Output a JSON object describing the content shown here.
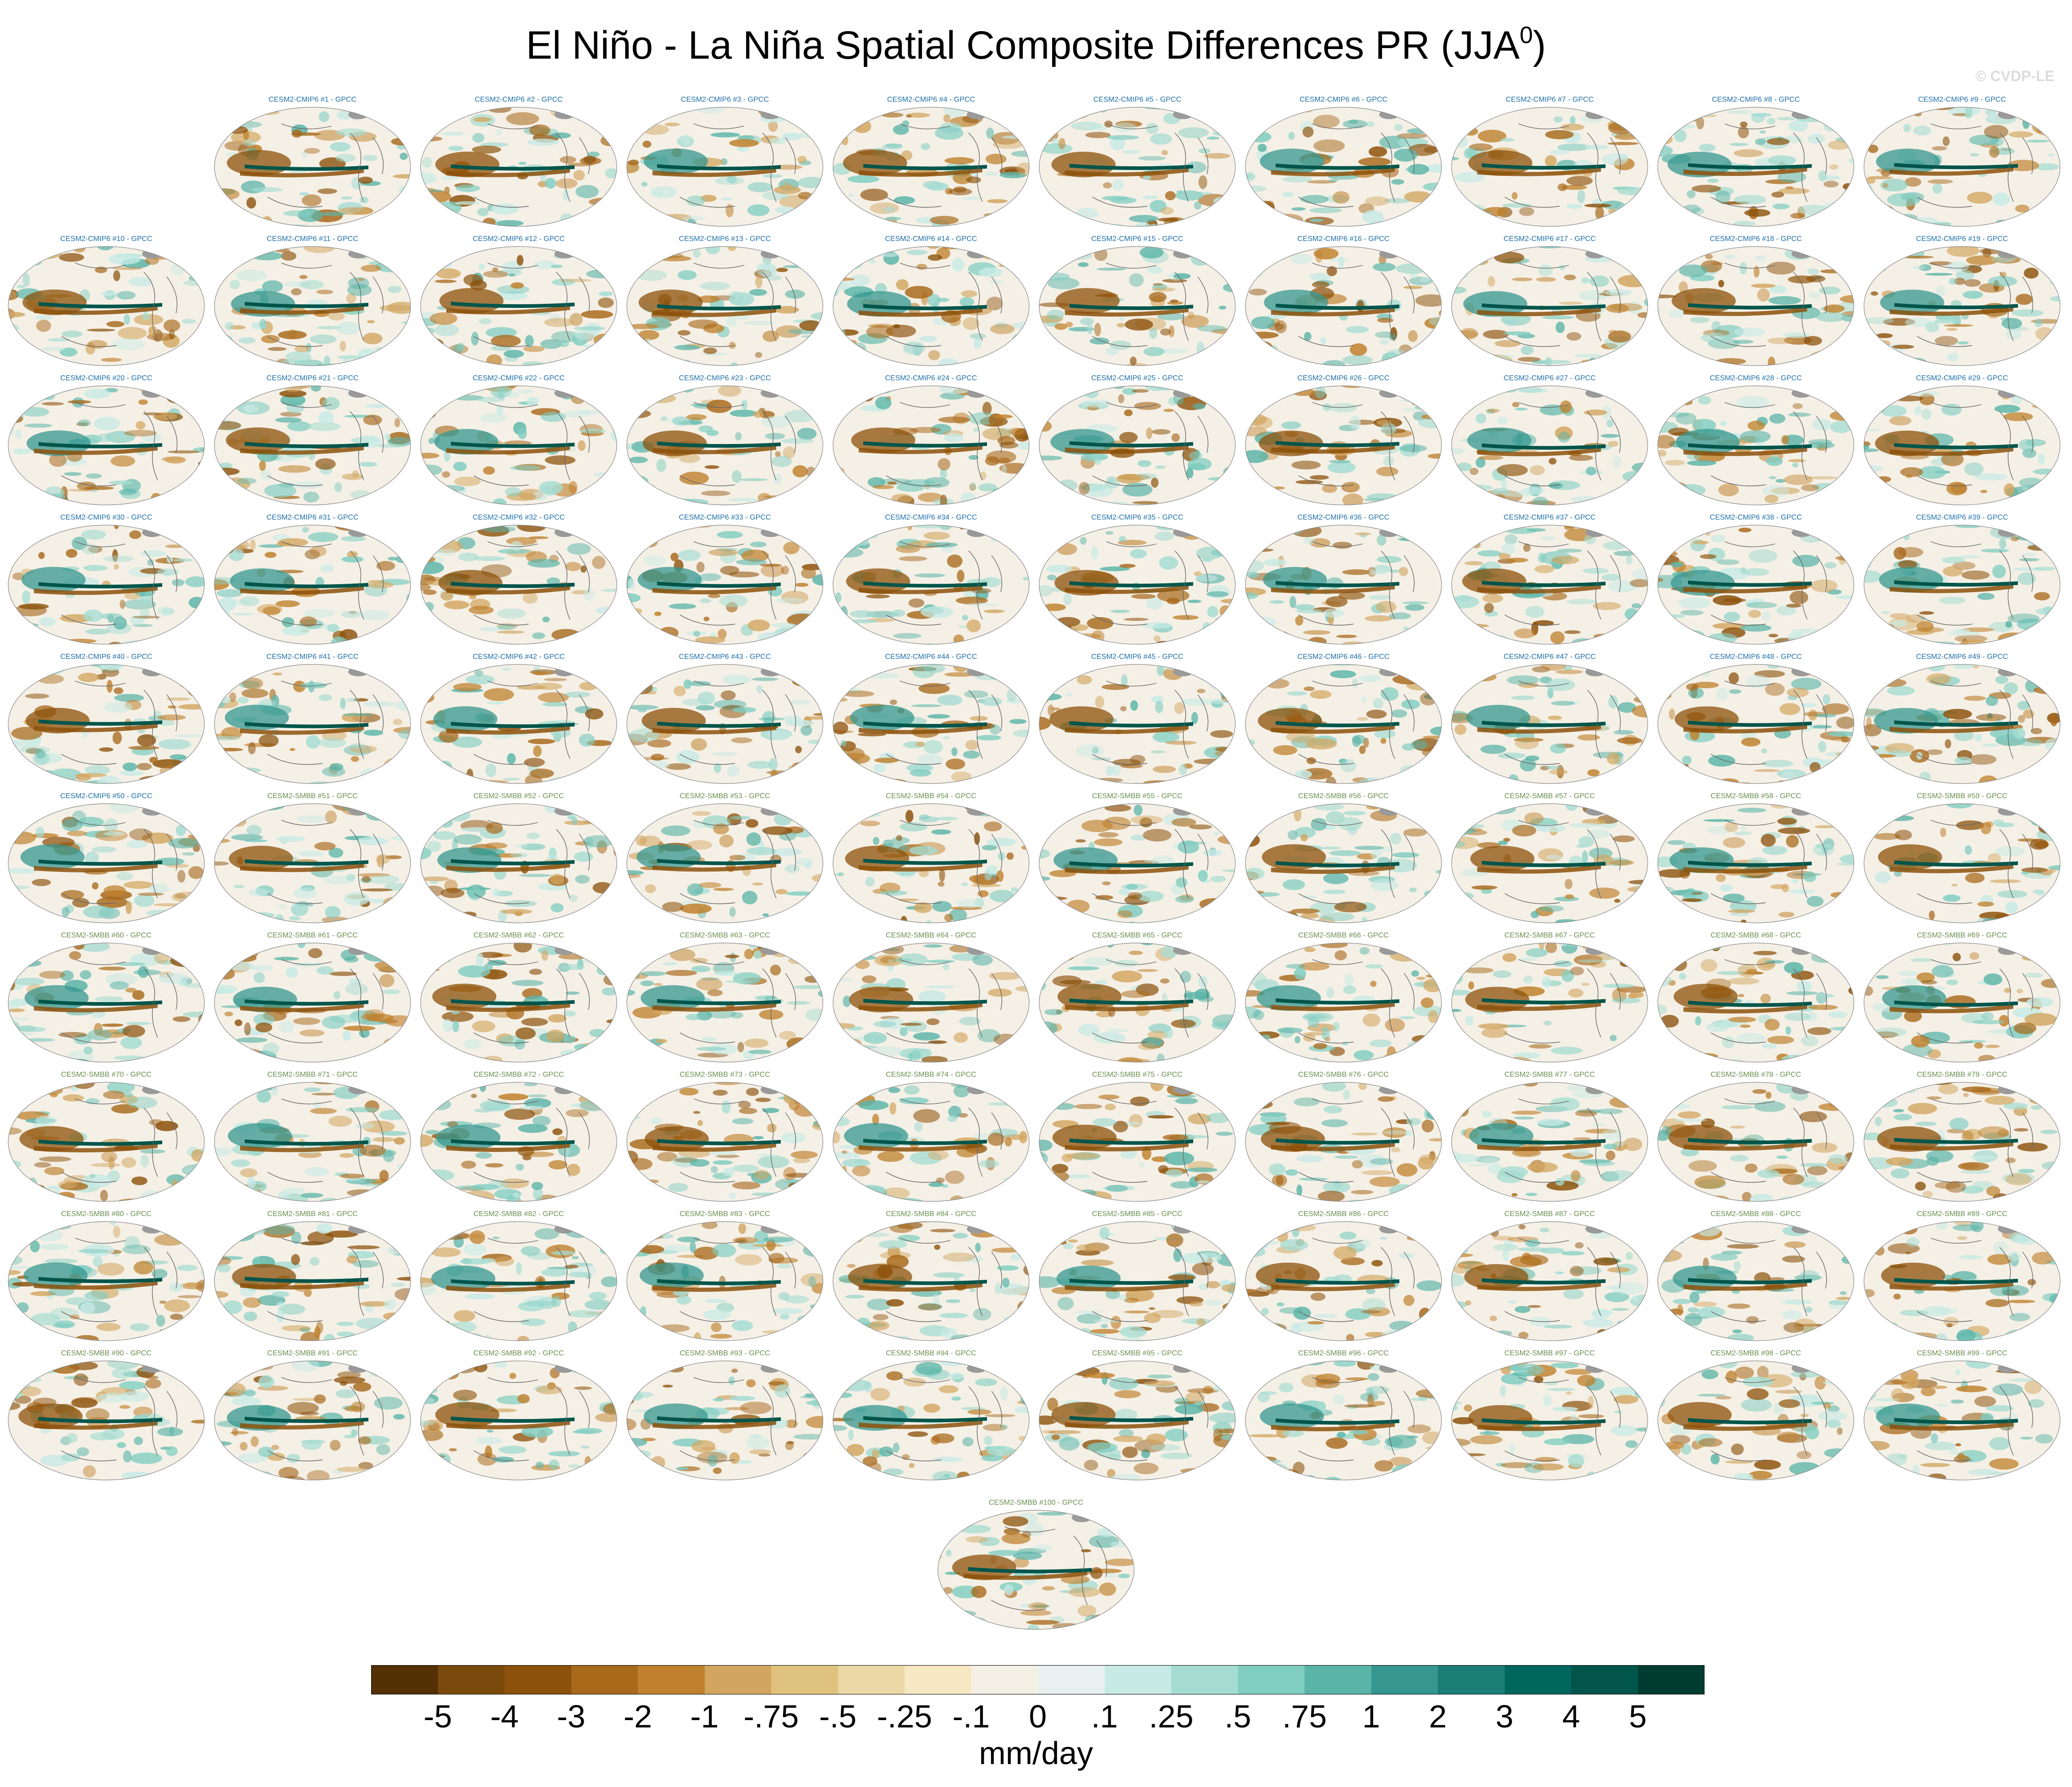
{
  "title": {
    "main": "El Niño - La Niña Spatial Composite Differences PR (JJA",
    "sup": "0",
    "close": ")"
  },
  "credit": "© CVDP-LE",
  "colors": {
    "cmip6_title": "#1f6fa8",
    "smbb_title": "#6a8f4e",
    "map_border": "#888888",
    "coast": "#666666",
    "land_ice": "#9a9a9a"
  },
  "chart_data": {
    "type": "heatmap",
    "description_units": "mm/day",
    "panels": [
      "CESM2-CMIP6 #1 - GPCC",
      "CESM2-CMIP6 #2 - GPCC",
      "CESM2-CMIP6 #3 - GPCC",
      "CESM2-CMIP6 #4 - GPCC",
      "CESM2-CMIP6 #5 - GPCC",
      "CESM2-CMIP6 #6 - GPCC",
      "CESM2-CMIP6 #7 - GPCC",
      "CESM2-CMIP6 #8 - GPCC",
      "CESM2-CMIP6 #9 - GPCC",
      "CESM2-CMIP6 #10 - GPCC",
      "CESM2-CMIP6 #11 - GPCC",
      "CESM2-CMIP6 #12 - GPCC",
      "CESM2-CMIP6 #13 - GPCC",
      "CESM2-CMIP6 #14 - GPCC",
      "CESM2-CMIP6 #15 - GPCC",
      "CESM2-CMIP6 #16 - GPCC",
      "CESM2-CMIP6 #17 - GPCC",
      "CESM2-CMIP6 #18 - GPCC",
      "CESM2-CMIP6 #19 - GPCC",
      "CESM2-CMIP6 #20 - GPCC",
      "CESM2-CMIP6 #21 - GPCC",
      "CESM2-CMIP6 #22 - GPCC",
      "CESM2-CMIP6 #23 - GPCC",
      "CESM2-CMIP6 #24 - GPCC",
      "CESM2-CMIP6 #25 - GPCC",
      "CESM2-CMIP6 #26 - GPCC",
      "CESM2-CMIP6 #27 - GPCC",
      "CESM2-CMIP6 #28 - GPCC",
      "CESM2-CMIP6 #29 - GPCC",
      "CESM2-CMIP6 #30 - GPCC",
      "CESM2-CMIP6 #31 - GPCC",
      "CESM2-CMIP6 #32 - GPCC",
      "CESM2-CMIP6 #33 - GPCC",
      "CESM2-CMIP6 #34 - GPCC",
      "CESM2-CMIP6 #35 - GPCC",
      "CESM2-CMIP6 #36 - GPCC",
      "CESM2-CMIP6 #37 - GPCC",
      "CESM2-CMIP6 #38 - GPCC",
      "CESM2-CMIP6 #39 - GPCC",
      "CESM2-CMIP6 #40 - GPCC",
      "CESM2-CMIP6 #41 - GPCC",
      "CESM2-CMIP6 #42 - GPCC",
      "CESM2-CMIP6 #43 - GPCC",
      "CESM2-CMIP6 #44 - GPCC",
      "CESM2-CMIP6 #45 - GPCC",
      "CESM2-CMIP6 #46 - GPCC",
      "CESM2-CMIP6 #47 - GPCC",
      "CESM2-CMIP6 #48 - GPCC",
      "CESM2-CMIP6 #49 - GPCC",
      "CESM2-CMIP6 #50 - GPCC",
      "CESM2-SMBB #51 - GPCC",
      "CESM2-SMBB #52 - GPCC",
      "CESM2-SMBB #53 - GPCC",
      "CESM2-SMBB #54 - GPCC",
      "CESM2-SMBB #55 - GPCC",
      "CESM2-SMBB #56 - GPCC",
      "CESM2-SMBB #57 - GPCC",
      "CESM2-SMBB #58 - GPCC",
      "CESM2-SMBB #59 - GPCC",
      "CESM2-SMBB #60 - GPCC",
      "CESM2-SMBB #61 - GPCC",
      "CESM2-SMBB #62 - GPCC",
      "CESM2-SMBB #63 - GPCC",
      "CESM2-SMBB #64 - GPCC",
      "CESM2-SMBB #65 - GPCC",
      "CESM2-SMBB #66 - GPCC",
      "CESM2-SMBB #67 - GPCC",
      "CESM2-SMBB #68 - GPCC",
      "CESM2-SMBB #69 - GPCC",
      "CESM2-SMBB #70 - GPCC",
      "CESM2-SMBB #71 - GPCC",
      "CESM2-SMBB #72 - GPCC",
      "CESM2-SMBB #73 - GPCC",
      "CESM2-SMBB #74 - GPCC",
      "CESM2-SMBB #75 - GPCC",
      "CESM2-SMBB #76 - GPCC",
      "CESM2-SMBB #77 - GPCC",
      "CESM2-SMBB #78 - GPCC",
      "CESM2-SMBB #79 - GPCC",
      "CESM2-SMBB #80 - GPCC",
      "CESM2-SMBB #81 - GPCC",
      "CESM2-SMBB #82 - GPCC",
      "CESM2-SMBB #83 - GPCC",
      "CESM2-SMBB #84 - GPCC",
      "CESM2-SMBB #85 - GPCC",
      "CESM2-SMBB #86 - GPCC",
      "CESM2-SMBB #87 - GPCC",
      "CESM2-SMBB #88 - GPCC",
      "CESM2-SMBB #89 - GPCC",
      "CESM2-SMBB #90 - GPCC",
      "CESM2-SMBB #91 - GPCC",
      "CESM2-SMBB #92 - GPCC",
      "CESM2-SMBB #93 - GPCC",
      "CESM2-SMBB #94 - GPCC",
      "CESM2-SMBB #95 - GPCC",
      "CESM2-SMBB #96 - GPCC",
      "CESM2-SMBB #97 - GPCC",
      "CESM2-SMBB #98 - GPCC",
      "CESM2-SMBB #99 - GPCC",
      "CESM2-SMBB #100 - GPCC"
    ],
    "colorbar": {
      "label": "mm/day",
      "tick_labels": [
        "-5",
        "-4",
        "-3",
        "-2",
        "-1",
        "-.75",
        "-.5",
        "-.25",
        "-.1",
        "0",
        ".1",
        ".25",
        ".5",
        ".75",
        "1",
        "2",
        "3",
        "4",
        "5"
      ],
      "colors": [
        "#543005",
        "#7a4a0c",
        "#8c510a",
        "#a8691b",
        "#bf812d",
        "#d2a660",
        "#dfc27d",
        "#ecd8a6",
        "#f6e8c3",
        "#f5f0e6",
        "#e8f1ef",
        "#c7eae5",
        "#a5dcd2",
        "#80cdc1",
        "#5ab4a8",
        "#35978f",
        "#1b7e76",
        "#01665e",
        "#01554b",
        "#003c30"
      ]
    }
  }
}
